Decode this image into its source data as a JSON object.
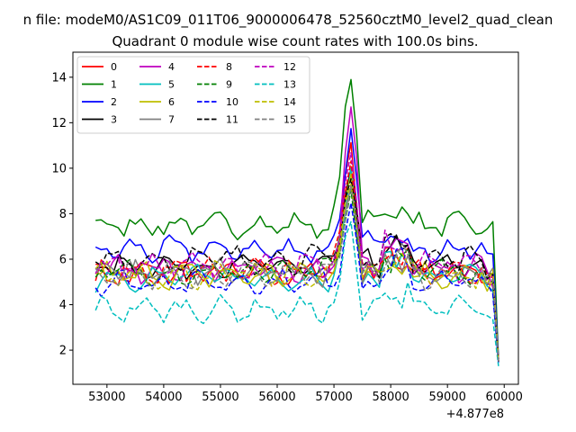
{
  "chart_data": {
    "type": "line",
    "suptitle": "n file: modeM0/AS1C09_011T06_9000006478_52560cztM0_level2_quad_clean",
    "title": "Quadrant 0 module wise count rates with 100.0s bins.",
    "xlabel": "",
    "ylabel": "",
    "x_offset_label": "+4.877e8",
    "xlim": [
      52400,
      60250
    ],
    "ylim": [
      0.5,
      15.1
    ],
    "x_ticks": [
      53000,
      54000,
      55000,
      56000,
      57000,
      58000,
      59000,
      60000
    ],
    "y_ticks": [
      2,
      4,
      6,
      8,
      10,
      12,
      14
    ],
    "x_start": 52800,
    "x_step": 100,
    "legend_position": "upper-left",
    "series": [
      {
        "name": "0",
        "color": "#ff0000",
        "style": "solid",
        "base": 5.4,
        "amp": 0.35,
        "peak": 11.0,
        "tail": 1.6
      },
      {
        "name": "1",
        "color": "#008000",
        "style": "solid",
        "base": 7.5,
        "amp": 0.3,
        "peak": 14.4,
        "tail": 1.6
      },
      {
        "name": "2",
        "color": "#0000ff",
        "style": "solid",
        "base": 6.4,
        "amp": 0.35,
        "peak": 11.9,
        "tail": 1.6
      },
      {
        "name": "3",
        "color": "#000000",
        "style": "solid",
        "base": 5.7,
        "amp": 0.3,
        "peak": 10.2,
        "tail": 1.5
      },
      {
        "name": "4",
        "color": "#bf00bf",
        "style": "solid",
        "base": 5.6,
        "amp": 0.35,
        "peak": 12.7,
        "tail": 1.6
      },
      {
        "name": "5",
        "color": "#00bfbf",
        "style": "solid",
        "base": 5.2,
        "amp": 0.35,
        "peak": 9.5,
        "tail": 1.5
      },
      {
        "name": "6",
        "color": "#bfbf00",
        "style": "solid",
        "base": 5.3,
        "amp": 0.35,
        "peak": 9.8,
        "tail": 1.5
      },
      {
        "name": "7",
        "color": "#808080",
        "style": "solid",
        "base": 5.4,
        "amp": 0.35,
        "peak": 9.2,
        "tail": 1.5
      },
      {
        "name": "8",
        "color": "#ff0000",
        "style": "dashed",
        "base": 5.5,
        "amp": 0.35,
        "peak": 10.5,
        "tail": 1.5
      },
      {
        "name": "9",
        "color": "#008000",
        "style": "dashed",
        "base": 5.4,
        "amp": 0.35,
        "peak": 9.0,
        "tail": 1.5
      },
      {
        "name": "10",
        "color": "#0000ff",
        "style": "dashed",
        "base": 5.0,
        "amp": 0.3,
        "peak": 8.5,
        "tail": 1.4
      },
      {
        "name": "11",
        "color": "#000000",
        "style": "dashed",
        "base": 6.0,
        "amp": 0.35,
        "peak": 9.5,
        "tail": 1.5
      },
      {
        "name": "12",
        "color": "#bf00bf",
        "style": "dashed",
        "base": 5.7,
        "amp": 0.35,
        "peak": 10.5,
        "tail": 1.5
      },
      {
        "name": "13",
        "color": "#00bfbf",
        "style": "dashed",
        "base": 3.8,
        "amp": 0.3,
        "peak": 7.6,
        "tail": 1.3
      },
      {
        "name": "14",
        "color": "#bfbf00",
        "style": "dashed",
        "base": 5.3,
        "amp": 0.35,
        "peak": 9.6,
        "tail": 1.5
      },
      {
        "name": "15",
        "color": "#808080",
        "style": "dashed",
        "base": 5.3,
        "amp": 0.35,
        "peak": 9.3,
        "tail": 1.5
      }
    ]
  }
}
